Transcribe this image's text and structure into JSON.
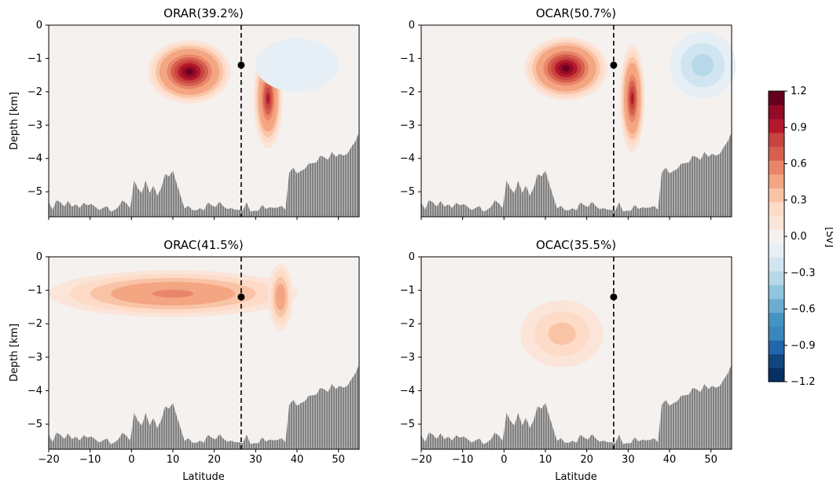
{
  "chart_data": [
    {
      "type": "heatmap",
      "title": "ORAR(39.2%)",
      "xlabel": "",
      "ylabel": "Depth [km]",
      "xlim": [
        -20,
        55
      ],
      "ylim": [
        -5.75,
        0
      ],
      "xticks": [
        "−20",
        "−10",
        "0",
        "10",
        "20",
        "30",
        "40",
        "50"
      ],
      "yticks": [
        "0",
        "−1",
        "−2",
        "−3",
        "−4",
        "−5"
      ],
      "marker": {
        "lat": 26.5,
        "depth": -1.2
      },
      "vline_lat": 26.5,
      "blobs": [
        {
          "lat": 14,
          "depth": -1.4,
          "rx": 10,
          "ry": 0.95,
          "value": 1.1
        },
        {
          "lat": 33,
          "depth": -2.2,
          "rx": 3.5,
          "ry": 1.5,
          "value": 0.95
        },
        {
          "lat": 40,
          "depth": -1.2,
          "rx": 10,
          "ry": 0.8,
          "value": -0.15
        }
      ]
    },
    {
      "type": "heatmap",
      "title": "OCAR(50.7%)",
      "xlabel": "",
      "ylabel": "",
      "xlim": [
        -20,
        55
      ],
      "ylim": [
        -5.75,
        0
      ],
      "xticks": [
        "−20",
        "−10",
        "0",
        "10",
        "20",
        "30",
        "40",
        "50"
      ],
      "yticks": [
        "0",
        "−1",
        "−2",
        "−3",
        "−4",
        "−5"
      ],
      "marker": {
        "lat": 26.5,
        "depth": -1.2
      },
      "vline_lat": 26.5,
      "blobs": [
        {
          "lat": 15,
          "depth": -1.3,
          "rx": 10,
          "ry": 0.95,
          "value": 1.15
        },
        {
          "lat": 31,
          "depth": -2.2,
          "rx": 3,
          "ry": 1.6,
          "value": 0.85
        },
        {
          "lat": 48,
          "depth": -1.2,
          "rx": 8,
          "ry": 1.0,
          "value": -0.3
        }
      ]
    },
    {
      "type": "heatmap",
      "title": "ORAC(41.5%)",
      "xlabel": "Latitude",
      "ylabel": "Depth [km]",
      "xlim": [
        -20,
        55
      ],
      "ylim": [
        -5.75,
        0
      ],
      "xticks": [
        "−20",
        "−10",
        "0",
        "10",
        "20",
        "30",
        "40",
        "50"
      ],
      "yticks": [
        "0",
        "−1",
        "−2",
        "−3",
        "−4",
        "−5"
      ],
      "marker": {
        "lat": 26.5,
        "depth": -1.2
      },
      "vline_lat": 26.5,
      "blobs": [
        {
          "lat": 10,
          "depth": -1.1,
          "rx": 30,
          "ry": 0.7,
          "value": 0.55
        },
        {
          "lat": 36,
          "depth": -1.2,
          "rx": 3,
          "ry": 1.0,
          "value": 0.45
        }
      ]
    },
    {
      "type": "heatmap",
      "title": "OCAC(35.5%)",
      "xlabel": "Latitude",
      "ylabel": "",
      "xlim": [
        -20,
        55
      ],
      "ylim": [
        -5.75,
        0
      ],
      "xticks": [
        "−20",
        "−10",
        "0",
        "10",
        "20",
        "30",
        "40",
        "50"
      ],
      "yticks": [
        "0",
        "−1",
        "−2",
        "−3",
        "−4",
        "−5"
      ],
      "marker": {
        "lat": 26.5,
        "depth": -1.2
      },
      "vline_lat": 26.5,
      "blobs": [
        {
          "lat": 14,
          "depth": -2.3,
          "rx": 10,
          "ry": 1.0,
          "value": 0.28
        }
      ]
    }
  ],
  "colorbar": {
    "label": "[Sv]",
    "range": [
      -1.2,
      1.2
    ],
    "ticks": [
      "1.2",
      "0.9",
      "0.6",
      "0.3",
      "0.0",
      "−0.3",
      "−0.6",
      "−0.9",
      "−1.2"
    ],
    "colors": [
      "#053061",
      "#11457e",
      "#2166ac",
      "#3a87bd",
      "#4393c3",
      "#6dacd1",
      "#92c5de",
      "#b7d8e8",
      "#d1e5f0",
      "#e6eff5",
      "#f4f1ef",
      "#fbe4d8",
      "#fddbc7",
      "#f9c3a6",
      "#f4a582",
      "#e9866a",
      "#d6604d",
      "#c84440",
      "#b2182b",
      "#930b27",
      "#67001f"
    ]
  }
}
